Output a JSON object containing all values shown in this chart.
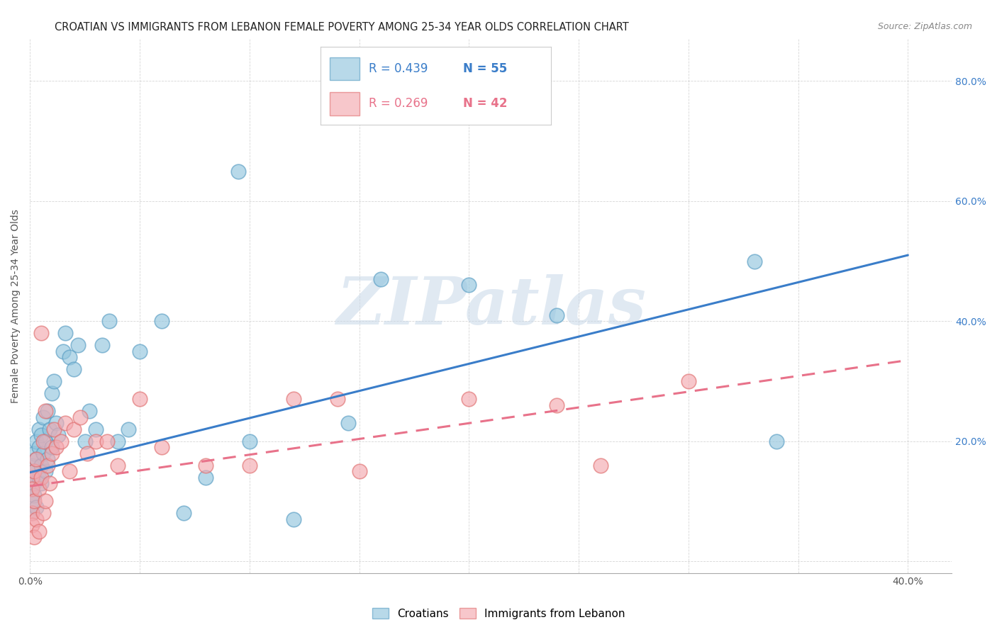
{
  "title": "CROATIAN VS IMMIGRANTS FROM LEBANON FEMALE POVERTY AMONG 25-34 YEAR OLDS CORRELATION CHART",
  "source": "Source: ZipAtlas.com",
  "ylabel": "Female Poverty Among 25-34 Year Olds",
  "xlim": [
    0.0,
    0.42
  ],
  "ylim": [
    -0.02,
    0.87
  ],
  "croatian_color": "#92c5de",
  "croatian_edge": "#5a9ec4",
  "lebanon_color": "#f4a9b0",
  "lebanon_edge": "#e07070",
  "line_blue_color": "#3a7dc9",
  "line_pink_color": "#e8728a",
  "background_color": "#ffffff",
  "watermark_text": "ZIPatlas",
  "watermark_color": "#d0dde8",
  "watermark_alpha": 0.9,
  "legend_r_blue": "R = 0.439",
  "legend_n_blue": "N = 55",
  "legend_r_pink": "R = 0.269",
  "legend_n_pink": "N = 42",
  "croatians_label": "Croatians",
  "lebanon_label": "Immigrants from Lebanon",
  "blue_line_x": [
    0.0,
    0.4
  ],
  "blue_line_y": [
    0.148,
    0.51
  ],
  "pink_line_x": [
    0.0,
    0.4
  ],
  "pink_line_y": [
    0.125,
    0.335
  ],
  "cr_x": [
    0.001,
    0.001,
    0.001,
    0.001,
    0.001,
    0.002,
    0.002,
    0.002,
    0.002,
    0.003,
    0.003,
    0.003,
    0.004,
    0.004,
    0.004,
    0.005,
    0.005,
    0.005,
    0.006,
    0.006,
    0.007,
    0.007,
    0.008,
    0.008,
    0.009,
    0.01,
    0.01,
    0.011,
    0.012,
    0.013,
    0.015,
    0.016,
    0.018,
    0.02,
    0.022,
    0.025,
    0.027,
    0.03,
    0.033,
    0.036,
    0.04,
    0.045,
    0.05,
    0.06,
    0.07,
    0.08,
    0.095,
    0.1,
    0.12,
    0.145,
    0.16,
    0.2,
    0.24,
    0.33,
    0.34
  ],
  "cr_y": [
    0.14,
    0.16,
    0.12,
    0.1,
    0.08,
    0.18,
    0.15,
    0.13,
    0.11,
    0.17,
    0.2,
    0.09,
    0.19,
    0.22,
    0.14,
    0.16,
    0.21,
    0.13,
    0.18,
    0.24,
    0.2,
    0.15,
    0.25,
    0.17,
    0.22,
    0.28,
    0.19,
    0.3,
    0.23,
    0.21,
    0.35,
    0.38,
    0.34,
    0.32,
    0.36,
    0.2,
    0.25,
    0.22,
    0.36,
    0.4,
    0.2,
    0.22,
    0.35,
    0.4,
    0.08,
    0.14,
    0.65,
    0.2,
    0.07,
    0.23,
    0.47,
    0.46,
    0.41,
    0.5,
    0.2
  ],
  "lb_x": [
    0.001,
    0.001,
    0.001,
    0.001,
    0.002,
    0.002,
    0.002,
    0.003,
    0.003,
    0.004,
    0.004,
    0.005,
    0.005,
    0.006,
    0.006,
    0.007,
    0.007,
    0.008,
    0.009,
    0.01,
    0.011,
    0.012,
    0.014,
    0.016,
    0.018,
    0.02,
    0.023,
    0.026,
    0.03,
    0.035,
    0.04,
    0.05,
    0.06,
    0.08,
    0.1,
    0.12,
    0.14,
    0.15,
    0.2,
    0.24,
    0.26,
    0.3
  ],
  "lb_y": [
    0.14,
    0.12,
    0.08,
    0.06,
    0.15,
    0.1,
    0.04,
    0.17,
    0.07,
    0.12,
    0.05,
    0.38,
    0.14,
    0.2,
    0.08,
    0.25,
    0.1,
    0.16,
    0.13,
    0.18,
    0.22,
    0.19,
    0.2,
    0.23,
    0.15,
    0.22,
    0.24,
    0.18,
    0.2,
    0.2,
    0.16,
    0.27,
    0.19,
    0.16,
    0.16,
    0.27,
    0.27,
    0.15,
    0.27,
    0.26,
    0.16,
    0.3
  ]
}
